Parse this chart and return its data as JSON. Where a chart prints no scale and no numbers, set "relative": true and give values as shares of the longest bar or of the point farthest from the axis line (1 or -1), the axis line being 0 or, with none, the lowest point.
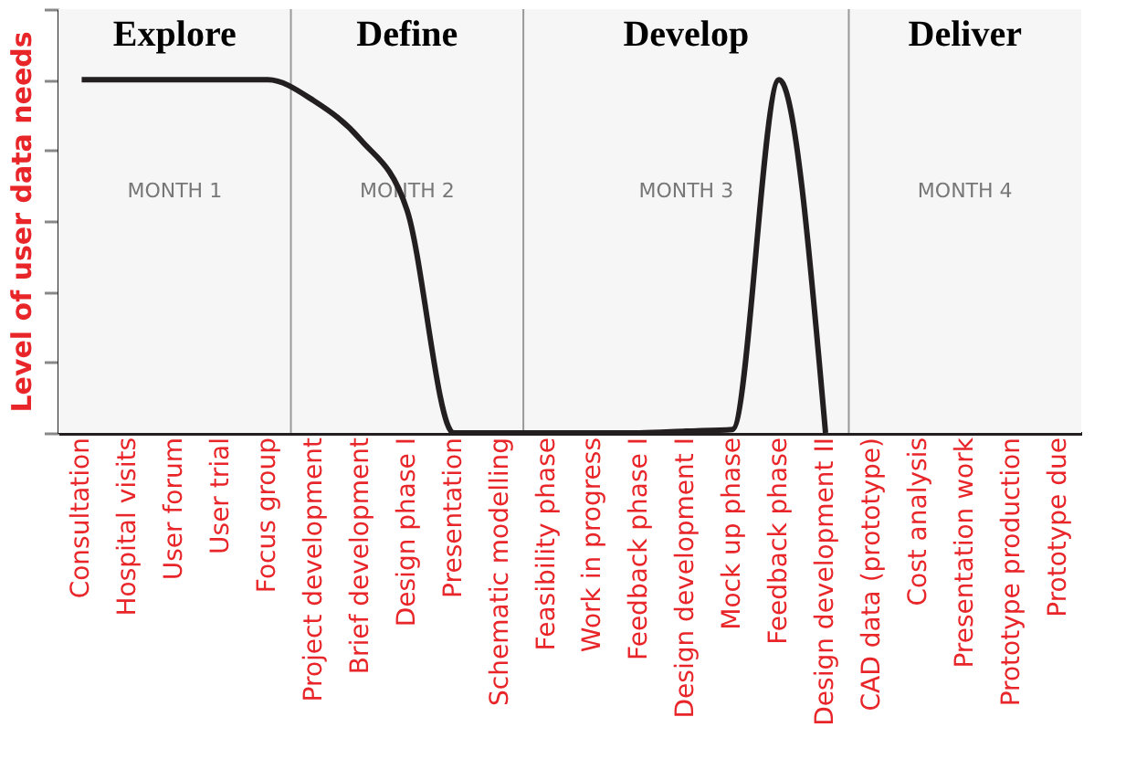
{
  "chart_data": {
    "type": "line",
    "relative": true,
    "ylabel": "Level of user data needs",
    "categories": [
      "Consultation",
      "Hospital visits",
      "User forum",
      "User trial",
      "Focus group",
      "Project development",
      "Brief development",
      "Design phase I",
      "Presentation",
      "Schematic modelling",
      "Feasibility phase",
      "Work in progress",
      "Feedback phase I",
      "Design development I",
      "Mock up phase",
      "Feedback phase",
      "Design development II",
      "CAD data (prototype)",
      "Cost analysis",
      "Presentation work",
      "Prototype production",
      "Prototype due"
    ],
    "series": [
      {
        "color": "#231f20",
        "values": [
          1,
          1,
          1,
          1,
          1,
          0.94,
          0.83,
          0.63,
          0,
          0,
          0,
          0,
          0,
          0.005,
          0.01,
          1,
          0,
          null,
          null,
          null,
          null,
          null
        ]
      }
    ],
    "bands": [
      {
        "axis": "x",
        "from": "Consultation",
        "to": "Focus group",
        "label": "Explore"
      },
      {
        "axis": "x",
        "from": "Project development",
        "to": "Schematic modelling",
        "label": "Define"
      },
      {
        "axis": "x",
        "from": "Feasibility phase",
        "to": "Design development II",
        "label": "Develop"
      },
      {
        "axis": "x",
        "from": "CAD data (prototype)",
        "to": "Prototype due",
        "label": "Deliver"
      }
    ],
    "annotations": [
      "MONTH 1",
      "MONTH 2",
      "MONTH 3",
      "MONTH 4"
    ]
  }
}
